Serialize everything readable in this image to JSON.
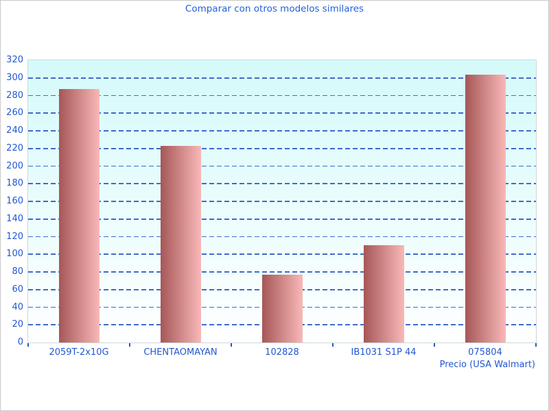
{
  "title": "Comparar con otros modelos similares",
  "colors": {
    "title": "#2161dd",
    "axis_text": "#2157d2",
    "gridline": "#3c6acd",
    "plot_bg_top": "#d5fafa",
    "plot_bg_bottom": "#ffffff",
    "bar_gradient_left": "#a65757",
    "bar_gradient_right": "#f9b8b8",
    "figure_border": "#c9c9c9",
    "plot_border": "#cdd7d7"
  },
  "chart_data": {
    "type": "bar",
    "title": "Comparar con otros modelos similares",
    "categories": [
      "2059T-2x10G",
      "CHENTAOMAYAN",
      "102828",
      "IB1031 S1P 44",
      "075804"
    ],
    "values": [
      287,
      223,
      77,
      110,
      304
    ],
    "xlabel": "Precio (USA Walmart)",
    "ylabel": "",
    "ylim": [
      0,
      320
    ],
    "ytick_step": 20,
    "yticks": [
      0,
      20,
      40,
      60,
      80,
      100,
      120,
      140,
      160,
      180,
      200,
      220,
      240,
      260,
      280,
      300,
      320
    ],
    "grid": true,
    "grid_style": "dashed",
    "legend": false,
    "bar_orientation": "vertical"
  }
}
